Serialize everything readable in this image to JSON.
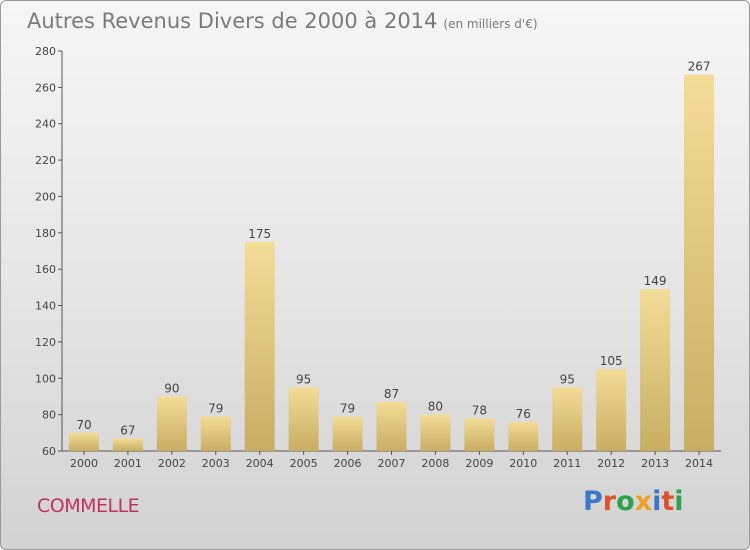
{
  "title": "Autres Revenus Divers de 2000 à 2014",
  "subtitle": "(en milliers d'€)",
  "commune": "COMMELLE",
  "logo_text": "Proxiti",
  "colors": {
    "bar_light": "#f3dc96",
    "bar_dark": "#c8ad62",
    "commune": "#c0345c",
    "logo": [
      "#3a78c8",
      "#e0532a",
      "#2aa34a",
      "#f0a020",
      "#3a78c8",
      "#e0532a",
      "#2aa34a"
    ]
  },
  "chart_data": {
    "type": "bar",
    "title": "Autres Revenus Divers de 2000 à 2014",
    "subtitle": "(en milliers d'€)",
    "categories": [
      "2000",
      "2001",
      "2002",
      "2003",
      "2004",
      "2005",
      "2006",
      "2007",
      "2008",
      "2009",
      "2010",
      "2011",
      "2012",
      "2013",
      "2014"
    ],
    "values": [
      70,
      67,
      90,
      79,
      175,
      95,
      79,
      87,
      80,
      78,
      76,
      95,
      105,
      149,
      267
    ],
    "ylim": [
      60,
      280
    ],
    "yticks": [
      60,
      80,
      100,
      120,
      140,
      160,
      180,
      200,
      220,
      240,
      260,
      280
    ],
    "grid": false,
    "data_labels": true
  }
}
